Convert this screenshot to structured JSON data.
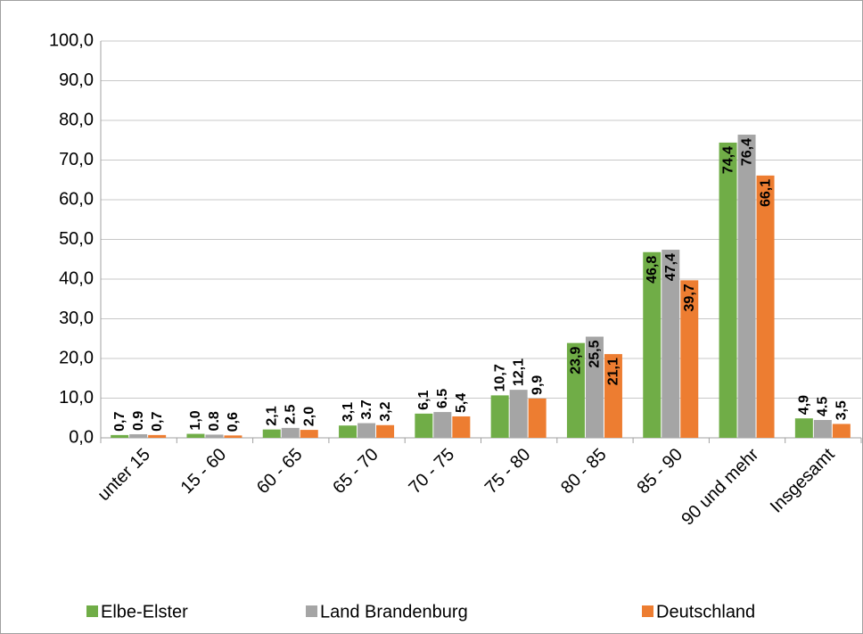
{
  "chart_data": {
    "type": "bar",
    "categories": [
      "unter 15",
      "15 - 60",
      "60 - 65",
      "65 - 70",
      "70 - 75",
      "75 - 80",
      "80 - 85",
      "85 - 90",
      "90  und mehr",
      "Insgesamt"
    ],
    "series": [
      {
        "name": "Elbe-Elster",
        "color": "#70ad47",
        "label_color": "#000000",
        "values": [
          0.7,
          1.0,
          2.1,
          3.1,
          6.1,
          10.7,
          23.9,
          46.8,
          74.4,
          4.9
        ],
        "value_labels": [
          "0,7",
          "1,0",
          "2,1",
          "3,1",
          "6,1",
          "10,7",
          "23,9",
          "46,8",
          "74,4",
          "4,9"
        ]
      },
      {
        "name": "Land Brandenburg",
        "color": "#a5a5a5",
        "label_color": "#000000",
        "values": [
          0.9,
          0.8,
          2.5,
          3.7,
          6.5,
          12.1,
          25.5,
          47.4,
          76.4,
          4.5
        ],
        "value_labels": [
          "0.9",
          "0.8",
          "2.5",
          "3.7",
          "6.5",
          "12,1",
          "25,5",
          "47,4",
          "76,4",
          "4.5"
        ]
      },
      {
        "name": "Deutschland",
        "color": "#ed7d31",
        "label_color": "#ed7d31",
        "values": [
          0.7,
          0.6,
          2.0,
          3.2,
          5.4,
          9.9,
          21.1,
          39.7,
          66.1,
          3.5
        ],
        "value_labels": [
          "0,7",
          "0,6",
          "2,0",
          "3,2",
          "5,4",
          "9,9",
          "21,1",
          "39,7",
          "66,1",
          "3,5"
        ]
      }
    ],
    "ylim": [
      0,
      100
    ],
    "yticks": [
      {
        "value": 0,
        "label": "0,0"
      },
      {
        "value": 10,
        "label": "10,0"
      },
      {
        "value": 20,
        "label": "20,0"
      },
      {
        "value": 30,
        "label": "30,0"
      },
      {
        "value": 40,
        "label": "40,0"
      },
      {
        "value": 50,
        "label": "50,0"
      },
      {
        "value": 60,
        "label": "60,0"
      },
      {
        "value": 70,
        "label": "70,0"
      },
      {
        "value": 80,
        "label": "80,0"
      },
      {
        "value": 90,
        "label": "90,0"
      },
      {
        "value": 100,
        "label": "100,0"
      }
    ],
    "grid": true,
    "legend": "bottom"
  }
}
